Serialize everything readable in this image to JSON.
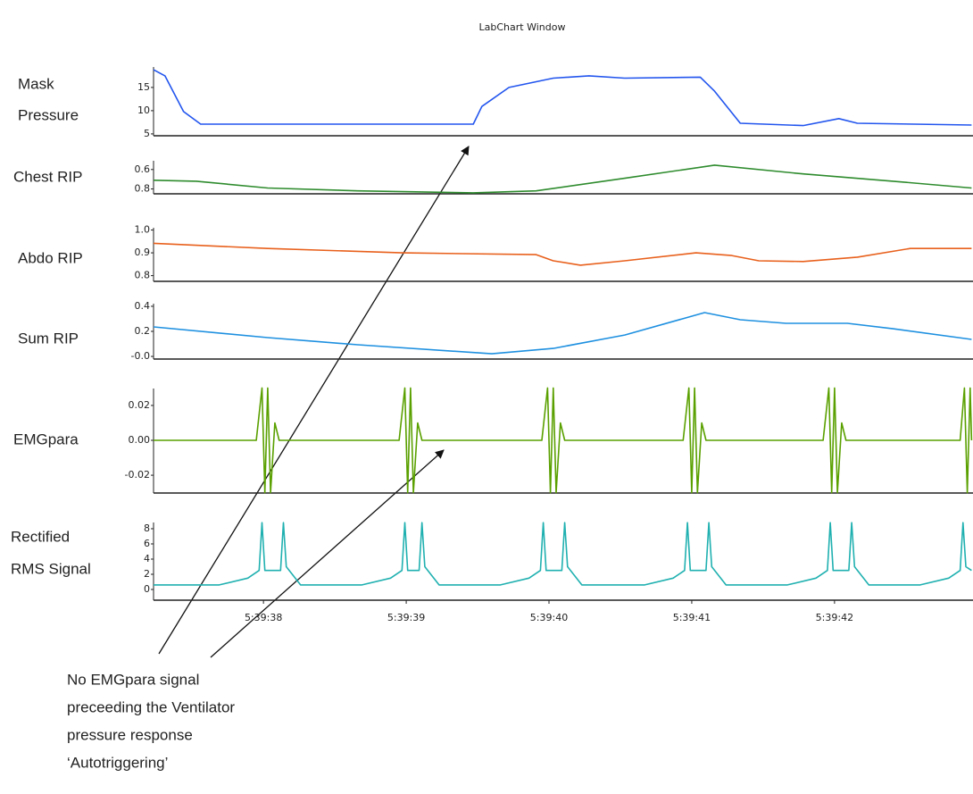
{
  "window_title": "LabChart Window",
  "chart_data": [
    {
      "type": "line",
      "ylabel": [
        "Mask",
        "Pressure"
      ],
      "color": "#2255ee",
      "xlim": [
        37.23,
        42.97
      ],
      "ylim": [
        4.6,
        19.4
      ],
      "yticks": [
        5,
        10,
        15
      ],
      "x": [
        37.23,
        37.31,
        37.44,
        37.56,
        37.97,
        39.47,
        39.53,
        39.72,
        40.03,
        40.28,
        40.53,
        41.06,
        41.16,
        41.34,
        41.78,
        42.03,
        42.16,
        42.96
      ],
      "values": [
        18.8,
        17.5,
        9.8,
        7.1,
        7.1,
        7.1,
        10.9,
        15,
        17,
        17.5,
        17,
        17.2,
        14.2,
        7.3,
        6.8,
        8.3,
        7.3,
        6.9
      ]
    },
    {
      "type": "line",
      "ylabel": [
        "Chest RIP"
      ],
      "color": "#2e8b2e",
      "xlim": [
        37.23,
        42.97
      ],
      "ylim": [
        0.85,
        0.51
      ],
      "yticks": [
        0.6,
        0.8
      ],
      "x": [
        37.23,
        37.53,
        38.03,
        38.66,
        39.47,
        39.91,
        40.53,
        41.16,
        41.78,
        42.41,
        42.96
      ],
      "values": [
        0.71,
        0.72,
        0.79,
        0.82,
        0.84,
        0.82,
        0.69,
        0.555,
        0.645,
        0.72,
        0.79
      ]
    },
    {
      "type": "line",
      "ylabel": [
        "Abdo RIP"
      ],
      "color": "#e8601c",
      "xlim": [
        37.23,
        42.97
      ],
      "ylim": [
        0.775,
        1.01
      ],
      "yticks": [
        {
          "value": 1.0,
          "label": "1.0"
        },
        0.9,
        0.8
      ],
      "x": [
        37.23,
        38.03,
        38.97,
        39.91,
        40.03,
        40.22,
        40.53,
        41.03,
        41.28,
        41.47,
        41.78,
        42.16,
        42.53,
        42.96
      ],
      "values": [
        0.942,
        0.919,
        0.9,
        0.892,
        0.865,
        0.846,
        0.865,
        0.9,
        0.888,
        0.865,
        0.862,
        0.881,
        0.919,
        0.919
      ]
    },
    {
      "type": "line",
      "ylabel": [
        "Sum RIP"
      ],
      "color": "#1e90e0",
      "xlim": [
        37.23,
        42.97
      ],
      "ylim": [
        -0.021,
        0.421
      ],
      "yticks": [
        0.4,
        0.2,
        {
          "value": 0,
          "label": "-0.0"
        }
      ],
      "x": [
        37.23,
        38.03,
        38.66,
        39.6,
        40.03,
        40.53,
        41.09,
        41.34,
        41.66,
        42.09,
        42.41,
        42.96
      ],
      "values": [
        0.236,
        0.15,
        0.093,
        0.021,
        0.064,
        0.171,
        0.35,
        0.293,
        0.264,
        0.264,
        0.221,
        0.136
      ]
    },
    {
      "type": "line",
      "ylabel": [
        "EMGpara"
      ],
      "color": "#5aa000",
      "xlim": [
        37.23,
        42.97
      ],
      "ylim": [
        -0.0302,
        0.0297
      ],
      "yticks": [
        0.02,
        {
          "value": 0,
          "label": "0.00"
        },
        -0.02
      ],
      "x": [
        37.23,
        37.95,
        37.99,
        38.01,
        38.03,
        38.05,
        38.08,
        38.11,
        38.95,
        38.99,
        39.01,
        39.03,
        39.05,
        39.08,
        39.11,
        39.95,
        39.99,
        40.01,
        40.03,
        40.05,
        40.08,
        40.11,
        40.94,
        40.98,
        41.0,
        41.02,
        41.04,
        41.07,
        41.1,
        41.92,
        41.96,
        41.98,
        42.0,
        42.02,
        42.05,
        42.08,
        42.88,
        42.91,
        42.93,
        42.95,
        42.96
      ],
      "values": [
        0,
        0,
        0.03,
        -0.03,
        0.03,
        -0.03,
        0.01,
        0,
        0,
        0.03,
        -0.03,
        0.03,
        -0.03,
        0.01,
        0,
        0,
        0.03,
        -0.03,
        0.03,
        -0.03,
        0.01,
        0,
        0,
        0.03,
        -0.03,
        0.03,
        -0.03,
        0.01,
        0,
        0,
        0.03,
        -0.03,
        0.03,
        -0.03,
        0.01,
        0,
        0,
        0.03,
        -0.03,
        0.03,
        0
      ]
    },
    {
      "type": "line",
      "ylabel": [
        "Rectified",
        "RMS Signal"
      ],
      "color": "#20b0b0",
      "xlim": [
        37.23,
        42.97
      ],
      "ylim": [
        -1.41,
        8.82
      ],
      "yticks": [
        8,
        6,
        4,
        2,
        0
      ],
      "xticks": [
        {
          "value": 38,
          "label": "5:39:38"
        },
        {
          "value": 39,
          "label": "5:39:39"
        },
        {
          "value": 40,
          "label": "5:39:40"
        },
        {
          "value": 41,
          "label": "5:39:41"
        },
        {
          "value": 42,
          "label": "5:39:42"
        }
      ],
      "x": [
        37.23,
        37.69,
        37.89,
        37.97,
        37.99,
        38.01,
        38.12,
        38.14,
        38.16,
        38.26,
        38.69,
        38.89,
        38.97,
        38.99,
        39.01,
        39.09,
        39.11,
        39.13,
        39.23,
        39.66,
        39.86,
        39.94,
        39.96,
        39.98,
        40.09,
        40.11,
        40.13,
        40.23,
        40.67,
        40.87,
        40.95,
        40.97,
        40.99,
        41.1,
        41.12,
        41.14,
        41.24,
        41.67,
        41.87,
        41.95,
        41.97,
        41.99,
        42.1,
        42.12,
        42.14,
        42.24,
        42.6,
        42.8,
        42.88,
        42.9,
        42.92,
        42.96
      ],
      "values": [
        0.6,
        0.6,
        1.5,
        2.5,
        8.8,
        2.5,
        2.5,
        8.8,
        3,
        0.6,
        0.6,
        1.5,
        2.5,
        8.8,
        2.5,
        2.5,
        8.8,
        3,
        0.6,
        0.6,
        1.5,
        2.5,
        8.8,
        2.5,
        2.5,
        8.8,
        3,
        0.6,
        0.6,
        1.5,
        2.5,
        8.8,
        2.5,
        2.5,
        8.8,
        3,
        0.6,
        0.6,
        1.5,
        2.5,
        8.8,
        2.5,
        2.5,
        8.8,
        3,
        0.6,
        0.6,
        1.5,
        2.5,
        8.8,
        3,
        2.5
      ]
    }
  ],
  "annotation": [
    "No EMGpara signal",
    "preceeding the Ventilator",
    "pressure response",
    "‘Autotriggering’"
  ]
}
